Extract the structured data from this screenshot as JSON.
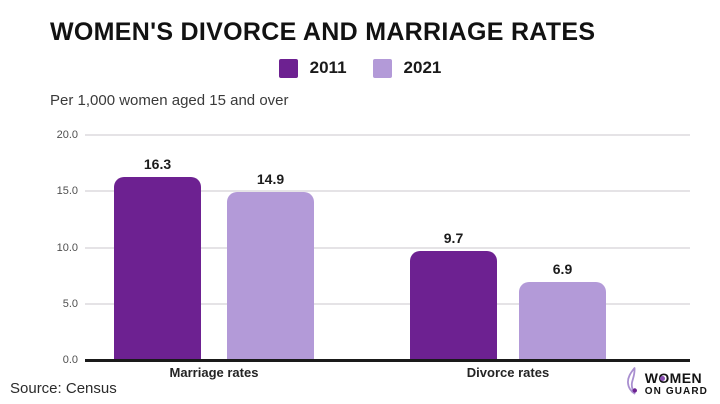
{
  "title": "WOMEN'S DIVORCE AND MARRIAGE RATES",
  "subtitle": "Per 1,000 women aged 15 and over",
  "source": "Source: Census",
  "colors": {
    "series_2011": "#6d2191",
    "series_2021": "#b39ad8",
    "axis": "#1a1a1a",
    "grid": "#e5e3e6",
    "logo_accent": "#8a4fb5"
  },
  "legend": [
    {
      "label": "2011",
      "color": "#6d2191"
    },
    {
      "label": "2021",
      "color": "#b39ad8"
    }
  ],
  "logo": {
    "line1": "WOMEN",
    "line2": "ON GUARD"
  },
  "chart_data": {
    "type": "bar",
    "categories": [
      "Marriage rates",
      "Divorce rates"
    ],
    "series": [
      {
        "name": "2011",
        "color": "#6d2191",
        "values": [
          16.3,
          9.7
        ]
      },
      {
        "name": "2021",
        "color": "#b39ad8",
        "values": [
          14.9,
          6.9
        ]
      }
    ],
    "value_labels": [
      [
        "16.3",
        "14.9"
      ],
      [
        "9.7",
        "6.9"
      ]
    ],
    "title": "WOMEN'S DIVORCE AND MARRIAGE RATES",
    "subtitle": "Per 1,000 women aged 15 and over",
    "xlabel": "",
    "ylabel": "",
    "ylim": [
      0,
      20
    ],
    "yticks": [
      0,
      5,
      10,
      15,
      20
    ],
    "ytick_labels": [
      "0.0",
      "5.0",
      "10.0",
      "15.0",
      "20.0"
    ],
    "grid": true,
    "legend_position": "top-center"
  }
}
